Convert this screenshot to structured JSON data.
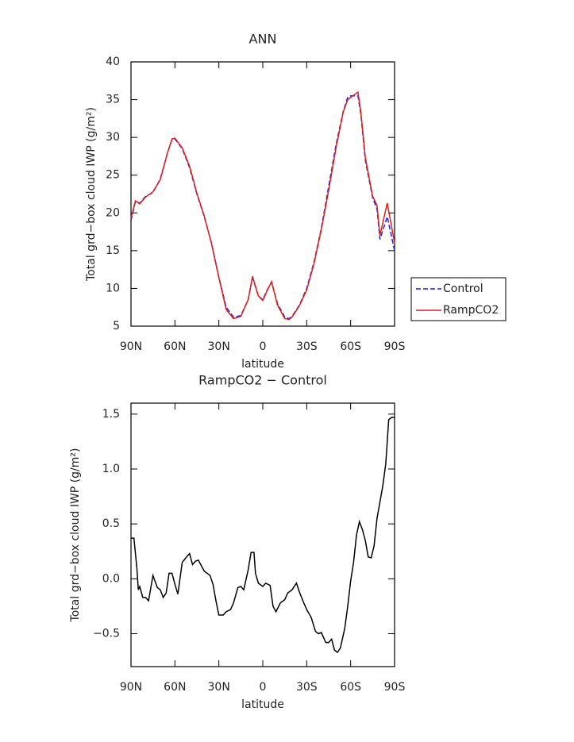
{
  "chart_data": [
    {
      "type": "line",
      "title": "ANN",
      "x_label": "latitude",
      "y_label": "Total grd−box cloud IWP (g/m²)",
      "x": [
        90,
        87,
        84,
        80,
        75,
        70,
        65,
        62,
        60,
        55,
        50,
        45,
        40,
        35,
        30,
        25,
        20,
        15,
        10,
        7,
        3,
        0,
        -3,
        -6,
        -10,
        -15,
        -18,
        -20,
        -25,
        -30,
        -35,
        -40,
        -45,
        -50,
        -55,
        -58,
        -60,
        -65,
        -67,
        -70,
        -75,
        -78,
        -80,
        -85,
        -90
      ],
      "series": [
        {
          "name": "Control",
          "color": "#1f1fd6",
          "line_style": "dashed",
          "values": [
            19,
            21.5,
            21.3,
            22.2,
            22.7,
            24.5,
            28,
            29.7,
            29.8,
            28.5,
            26,
            22.5,
            19.5,
            16,
            11.5,
            7.5,
            6.2,
            6.4,
            8.5,
            11.4,
            9,
            8.5,
            9.8,
            10.8,
            8,
            6.2,
            6,
            6.3,
            7.8,
            10,
            13.5,
            18,
            23.5,
            29,
            33.5,
            35.3,
            35.5,
            35.5,
            33,
            27,
            22,
            20.5,
            16.5,
            19.5,
            15
          ]
        },
        {
          "name": "RampCO2",
          "color": "#e0201c",
          "line_style": "solid",
          "values": [
            19.3,
            21.6,
            21.2,
            22.1,
            22.8,
            24.4,
            28,
            29.8,
            29.9,
            28.6,
            26.2,
            22.6,
            19.6,
            15.9,
            11.4,
            7.2,
            6,
            6.3,
            8.5,
            11.6,
            9,
            8.4,
            9.7,
            10.9,
            7.8,
            6,
            5.9,
            6.2,
            7.7,
            9.8,
            13.3,
            17.8,
            23,
            28.6,
            33.4,
            35,
            35.3,
            36,
            33.3,
            27.4,
            22.2,
            21,
            17,
            21.3,
            16
          ]
        }
      ],
      "xlim": [
        90,
        -90
      ],
      "xticks": [
        {
          "value": 90,
          "label": "90N"
        },
        {
          "value": 60,
          "label": "60N"
        },
        {
          "value": 30,
          "label": "30N"
        },
        0,
        {
          "value": -30,
          "label": "30S"
        },
        {
          "value": -60,
          "label": "60S"
        },
        {
          "value": -90,
          "label": "90S"
        }
      ],
      "ylim": [
        5,
        40
      ],
      "yticks": [
        5,
        10,
        15,
        20,
        25,
        30,
        35,
        40
      ],
      "legend": "right"
    },
    {
      "type": "line",
      "title": "RampCO2 − Control",
      "x_label": "latitude",
      "y_label": "Total grd−box cloud IWP (g/m²)",
      "x": [
        90,
        88,
        86,
        85,
        84,
        82,
        80,
        78,
        75,
        72,
        70,
        68,
        66,
        64,
        62,
        60,
        58,
        55,
        52,
        50,
        48,
        46,
        44,
        40,
        36,
        34,
        32,
        30,
        27,
        25,
        22,
        20,
        17,
        15,
        13,
        10,
        8,
        6,
        5,
        3,
        0,
        -2,
        -5,
        -7,
        -9,
        -12,
        -15,
        -17,
        -20,
        -23,
        -25,
        -28,
        -30,
        -33,
        -36,
        -38,
        -40,
        -43,
        -45,
        -47,
        -49,
        -51,
        -53,
        -56,
        -58,
        -60,
        -62,
        -64,
        -66,
        -68,
        -70,
        -72,
        -74,
        -76,
        -78,
        -80,
        -82,
        -84,
        -86,
        -88,
        -90
      ],
      "series": [
        {
          "name": "RampCO2 − Control",
          "color": "#000000",
          "line_style": "solid",
          "values": [
            0.37,
            0.37,
            0.1,
            -0.1,
            -0.07,
            -0.17,
            -0.17,
            -0.2,
            0.03,
            -0.08,
            -0.1,
            -0.17,
            -0.13,
            0.05,
            0.05,
            -0.05,
            -0.14,
            0.15,
            0.2,
            0.23,
            0.13,
            0.16,
            0.17,
            0.07,
            0.03,
            -0.05,
            -0.2,
            -0.33,
            -0.33,
            -0.3,
            -0.28,
            -0.22,
            -0.08,
            -0.07,
            -0.1,
            0.08,
            0.24,
            0.24,
            0.05,
            -0.04,
            -0.07,
            -0.04,
            -0.06,
            -0.25,
            -0.3,
            -0.22,
            -0.19,
            -0.13,
            -0.1,
            -0.04,
            -0.12,
            -0.22,
            -0.28,
            -0.35,
            -0.48,
            -0.5,
            -0.49,
            -0.58,
            -0.58,
            -0.55,
            -0.65,
            -0.67,
            -0.63,
            -0.45,
            -0.25,
            -0.02,
            0.15,
            0.4,
            0.52,
            0.45,
            0.35,
            0.2,
            0.19,
            0.3,
            0.55,
            0.7,
            0.85,
            1.05,
            1.45,
            1.47,
            1.47
          ]
        }
      ],
      "xlim": [
        90,
        -90
      ],
      "xticks": [
        {
          "value": 90,
          "label": "90N"
        },
        {
          "value": 60,
          "label": "60N"
        },
        {
          "value": 30,
          "label": "30N"
        },
        0,
        {
          "value": -30,
          "label": "30S"
        },
        {
          "value": -60,
          "label": "60S"
        },
        {
          "value": -90,
          "label": "90S"
        }
      ],
      "ylim": [
        -0.8,
        1.6
      ],
      "yticks": [
        {
          "value": -0.5,
          "label": "−0.5"
        },
        {
          "value": 0,
          "label": "0.0"
        },
        0.5,
        {
          "value": 1,
          "label": "1.0"
        },
        1.5
      ]
    }
  ]
}
